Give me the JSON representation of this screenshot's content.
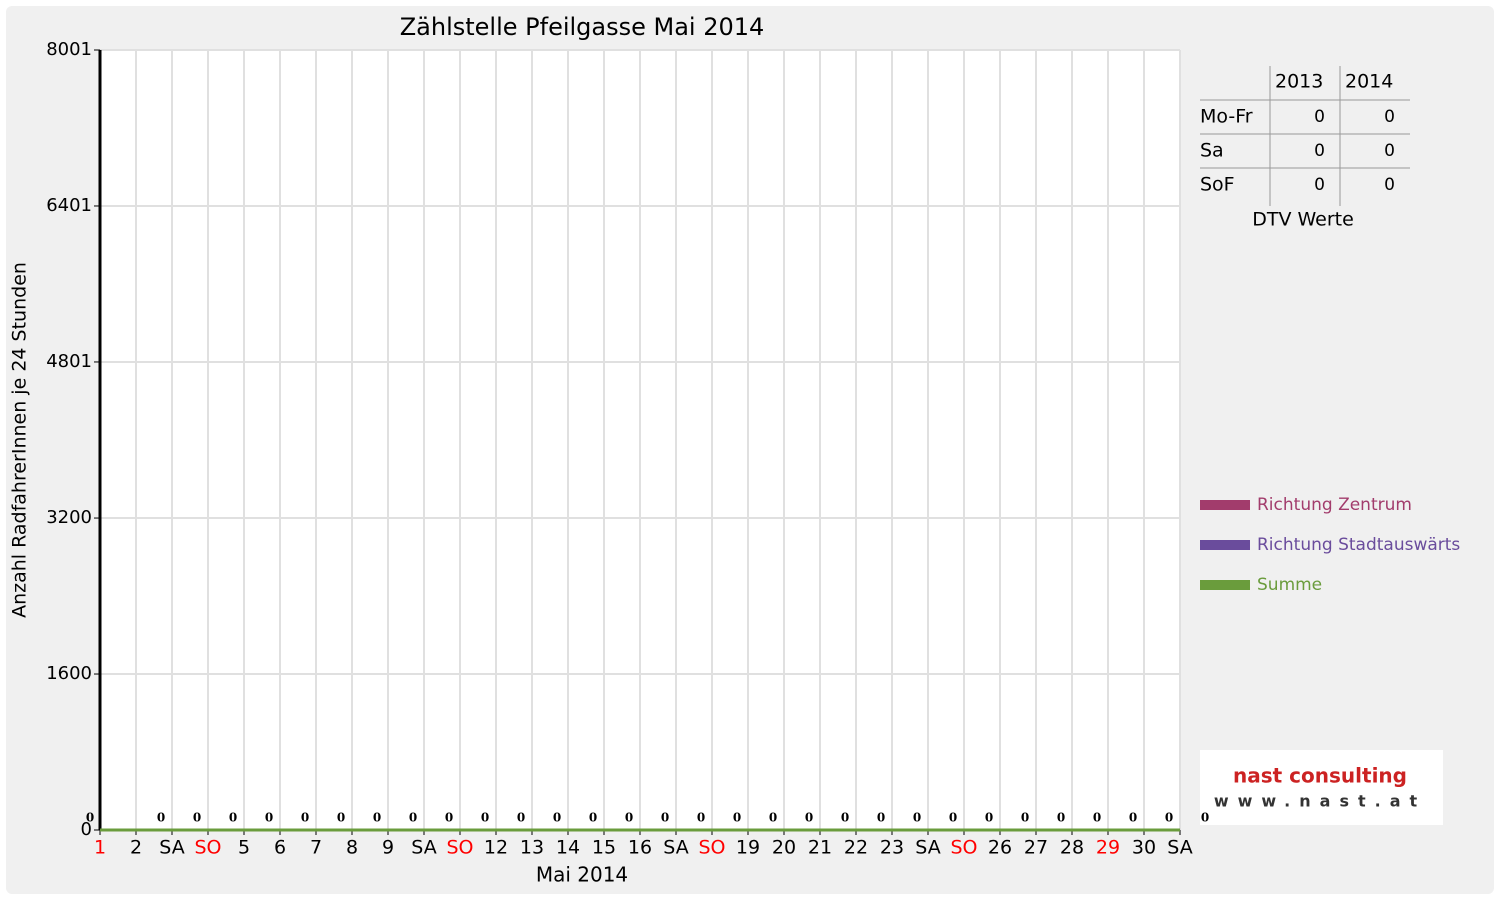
{
  "chart_data": {
    "type": "line",
    "title": "Zählstelle Pfeilgasse Mai 2014",
    "xlabel": "Mai 2014",
    "ylabel": "Anzahl RadfahrerInnen je 24 Stunden",
    "categories": [
      "1",
      "2",
      "SA",
      "SO",
      "5",
      "6",
      "7",
      "8",
      "9",
      "SA",
      "SO",
      "12",
      "13",
      "14",
      "15",
      "16",
      "SA",
      "SO",
      "19",
      "20",
      "21",
      "22",
      "23",
      "SA",
      "SO",
      "26",
      "27",
      "28",
      "29",
      "30",
      "SA"
    ],
    "category_colors": [
      "#ff0000",
      "#000000",
      "#000000",
      "#ff0000",
      "#000000",
      "#000000",
      "#000000",
      "#000000",
      "#000000",
      "#000000",
      "#ff0000",
      "#000000",
      "#000000",
      "#000000",
      "#000000",
      "#000000",
      "#000000",
      "#ff0000",
      "#000000",
      "#000000",
      "#000000",
      "#000000",
      "#000000",
      "#000000",
      "#ff0000",
      "#000000",
      "#000000",
      "#000000",
      "#ff0000",
      "#000000",
      "#000000"
    ],
    "series": [
      {
        "name": "Richtung Zentrum",
        "color": "#a23c6c",
        "values": [
          0,
          0,
          0,
          0,
          0,
          0,
          0,
          0,
          0,
          0,
          0,
          0,
          0,
          0,
          0,
          0,
          0,
          0,
          0,
          0,
          0,
          0,
          0,
          0,
          0,
          0,
          0,
          0,
          0,
          0,
          0
        ]
      },
      {
        "name": "Richtung Stadtauswärts",
        "color": "#6a4c9c",
        "values": [
          0,
          0,
          0,
          0,
          0,
          0,
          0,
          0,
          0,
          0,
          0,
          0,
          0,
          0,
          0,
          0,
          0,
          0,
          0,
          0,
          0,
          0,
          0,
          0,
          0,
          0,
          0,
          0,
          0,
          0,
          0
        ]
      },
      {
        "name": "Summe",
        "color": "#6a9c3c",
        "values": [
          0,
          0,
          0,
          0,
          0,
          0,
          0,
          0,
          0,
          0,
          0,
          0,
          0,
          0,
          0,
          0,
          0,
          0,
          0,
          0,
          0,
          0,
          0,
          0,
          0,
          0,
          0,
          0,
          0,
          0,
          0
        ],
        "data_labels": true
      }
    ],
    "ylim": [
      0,
      8001
    ],
    "yticks": [
      0,
      1600,
      3200,
      4801,
      6401,
      8001
    ],
    "grid": true,
    "dtv_table": {
      "columns": [
        "2013",
        "2014"
      ],
      "rows": [
        {
          "label": "Mo-Fr",
          "values": [
            0,
            0
          ]
        },
        {
          "label": "Sa",
          "values": [
            0,
            0
          ]
        },
        {
          "label": "SoF",
          "values": [
            0,
            0
          ]
        }
      ],
      "caption": "DTV Werte"
    },
    "logo": {
      "name": "nast consulting",
      "url": "www.nast.at"
    }
  }
}
